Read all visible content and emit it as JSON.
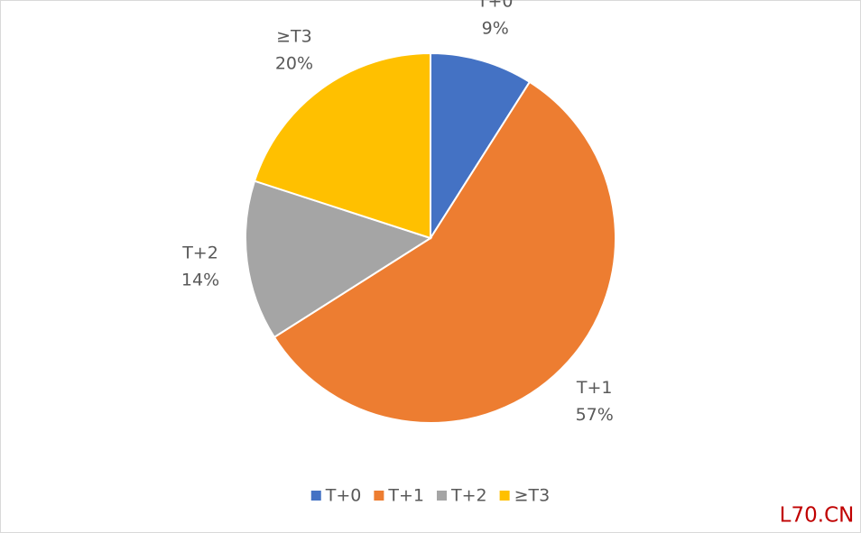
{
  "chart_data": {
    "type": "pie",
    "categories": [
      "T+0",
      "T+1",
      "T+2",
      "≥T3"
    ],
    "values": [
      9,
      57,
      14,
      20
    ],
    "value_labels": [
      "9%",
      "57%",
      "14%",
      "20%"
    ],
    "colors": [
      "#4472c4",
      "#ed7d31",
      "#a5a5a5",
      "#ffc000"
    ],
    "legend": "bottom"
  },
  "watermark": "L70.CN"
}
